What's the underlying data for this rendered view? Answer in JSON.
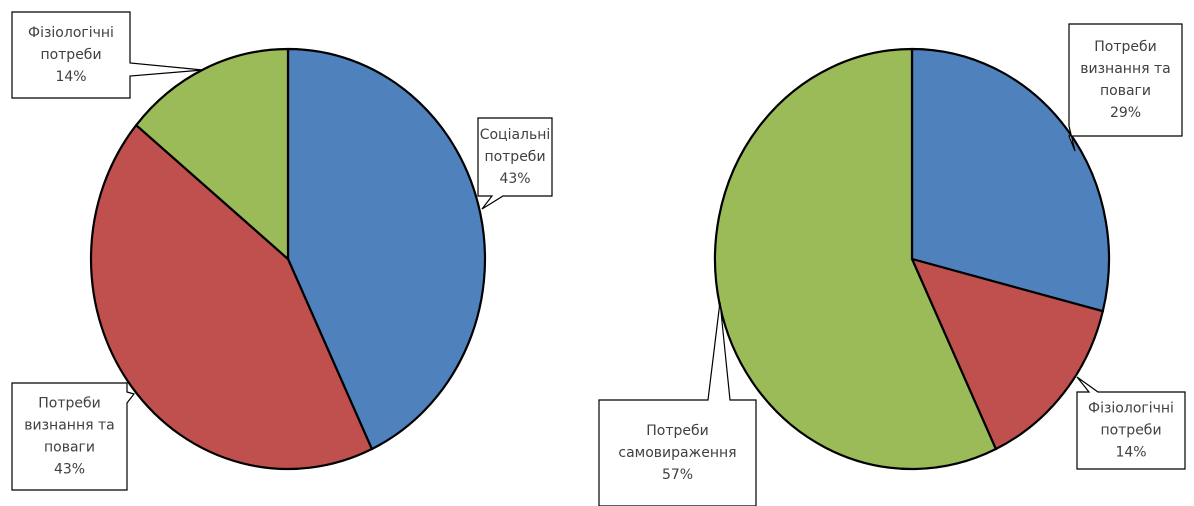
{
  "chart_data": [
    {
      "type": "pie",
      "slices": [
        {
          "label_lines": [
            "Соціальні",
            "потреби",
            "43%"
          ],
          "value": 43,
          "color": "#4f81bd"
        },
        {
          "label_lines": [
            "Потреби",
            "визнання та",
            "поваги",
            "43%"
          ],
          "value": 43,
          "color": "#c0504d"
        },
        {
          "label_lines": [
            "Фізіологічні",
            "потреби",
            "14%"
          ],
          "value": 14,
          "color": "#9bbb59"
        }
      ]
    },
    {
      "type": "pie",
      "slices": [
        {
          "label_lines": [
            "Потреби",
            "визнання та",
            "поваги",
            "29%"
          ],
          "value": 29,
          "color": "#4f81bd"
        },
        {
          "label_lines": [
            "Фізіологічні",
            "потреби",
            "14%"
          ],
          "value": 14,
          "color": "#c0504d"
        },
        {
          "label_lines": [
            "Потреби",
            "самовираження",
            "57%"
          ],
          "value": 57,
          "color": "#9bbb59"
        }
      ]
    }
  ]
}
